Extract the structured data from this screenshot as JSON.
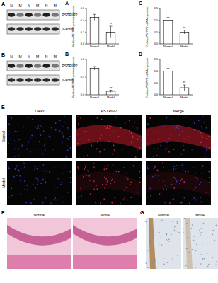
{
  "chart_data": [
    {
      "type": "bar",
      "panel": "A",
      "y_label": "Relative PSTPIP2 protein expression",
      "categories": [
        "Normal",
        "Model"
      ],
      "values": [
        0.45,
        0.2
      ],
      "errors": [
        0.05,
        0.1
      ],
      "annotations": [
        null,
        "**"
      ],
      "color": "#ffffff",
      "ylim": [
        0,
        0.6
      ],
      "yticks": [
        {
          "value": 0,
          "label": "0.0"
        },
        0.2,
        0.4,
        0.6
      ]
    },
    {
      "type": "bar",
      "panel": "C",
      "y_label": "Relative PSTPIP2 mRNA expression",
      "categories": [
        "Normal",
        "Model"
      ],
      "values": [
        1.0,
        0.5
      ],
      "errors": [
        0.12,
        0.08
      ],
      "annotations": [
        null,
        "**"
      ],
      "color": "#ffffff",
      "ylim": [
        0,
        1.5
      ],
      "yticks": [
        {
          "value": 0,
          "label": "0.0"
        },
        0.5,
        {
          "value": 1,
          "label": "1.0"
        },
        1.5
      ]
    },
    {
      "type": "bar",
      "panel": "B",
      "y_label": "Relative PSTPIP2 protein expression",
      "categories": [
        "Normal",
        "Model"
      ],
      "values": [
        0.75,
        0.1
      ],
      "errors": [
        0.05,
        0.03
      ],
      "annotations": [
        null,
        "**"
      ],
      "color": "#ffffff",
      "ylim": [
        0,
        1.0
      ],
      "yticks": [
        {
          "value": 0,
          "label": "0.0"
        },
        0.5,
        {
          "value": 1,
          "label": "1.0"
        }
      ]
    },
    {
      "type": "bar",
      "panel": "D",
      "y_label": "Relative PSTPIP2 mRNA expression",
      "categories": [
        "Normal",
        "Model"
      ],
      "values": [
        1.0,
        0.3
      ],
      "errors": [
        0.12,
        0.12
      ],
      "annotations": [
        null,
        "**"
      ],
      "color": "#ffffff",
      "ylim": [
        0,
        1.5
      ],
      "yticks": [
        {
          "value": 0,
          "label": "0.0"
        },
        0.5,
        {
          "value": 1,
          "label": "1.0"
        },
        1.5
      ]
    }
  ],
  "blots": [
    {
      "panel": "A",
      "lanes": [
        "N",
        "M",
        "N",
        "M",
        "N",
        "M"
      ],
      "bands": [
        "PSTPIP2",
        "β-actin"
      ]
    },
    {
      "panel": "B",
      "lanes": [
        "N",
        "M",
        "N",
        "M",
        "N",
        "M"
      ],
      "bands": [
        "PSTPIP2",
        "β-actin"
      ]
    }
  ],
  "fluorescence": {
    "panel": "E",
    "columns": [
      "DAPI",
      "PSTPIP2",
      "Merge"
    ],
    "rows": [
      "Normal",
      "Model"
    ]
  },
  "histology": [
    {
      "panel": "F",
      "labels": [
        "Normal",
        "Model"
      ]
    },
    {
      "panel": "G",
      "labels": [
        "Normal",
        "Model"
      ]
    }
  ]
}
